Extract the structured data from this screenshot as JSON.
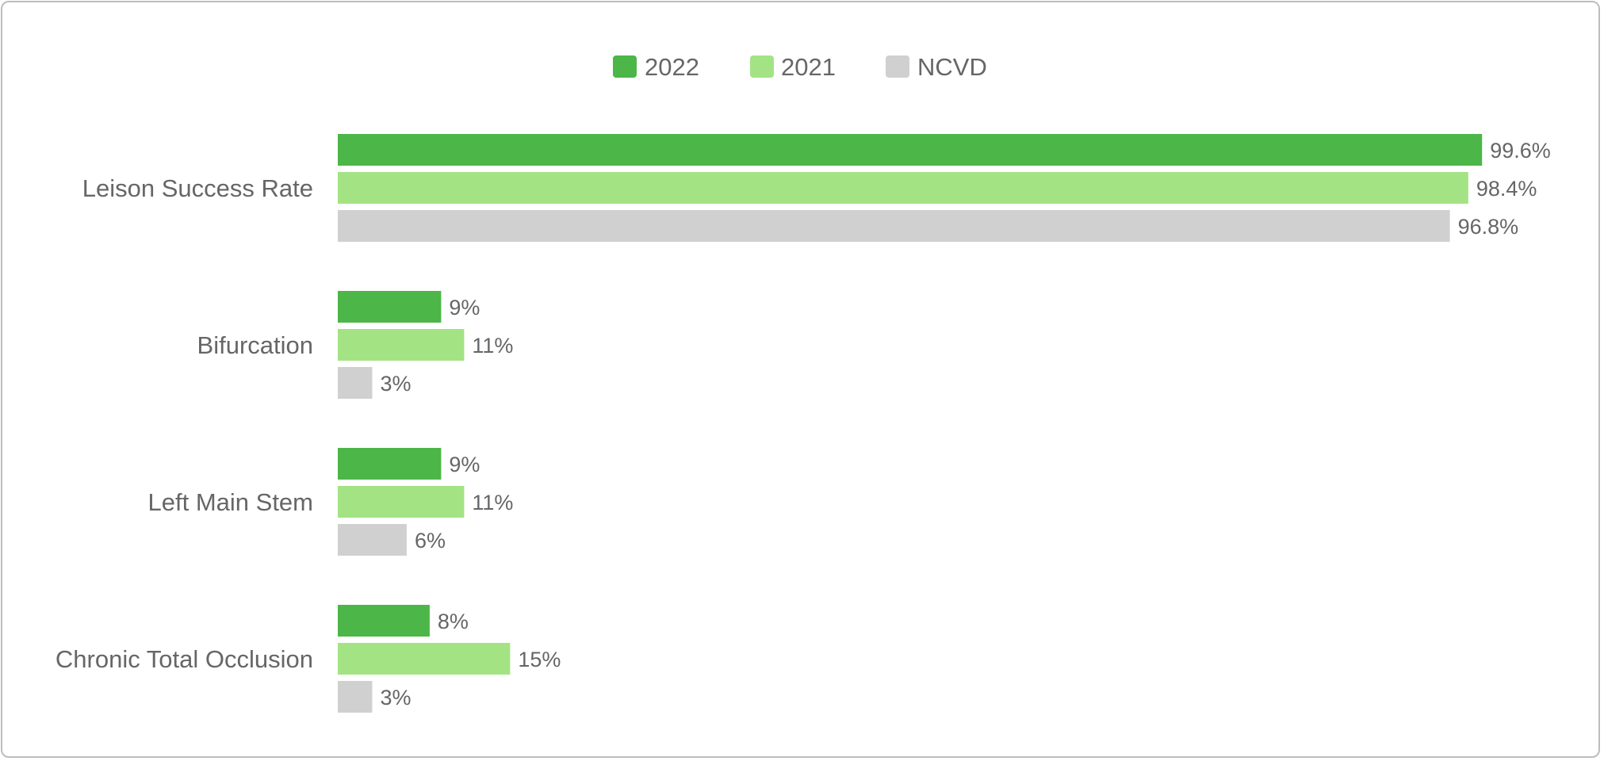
{
  "chart_data": {
    "type": "bar",
    "orientation": "horizontal",
    "categories": [
      "Leison Success Rate",
      "Bifurcation",
      "Left Main Stem",
      "Chronic Total Occlusion"
    ],
    "series": [
      {
        "name": "2022",
        "color": "#4cb648",
        "values": [
          99.6,
          9,
          9,
          8
        ],
        "labels": [
          "99.6%",
          "9%",
          "9%",
          "8%"
        ]
      },
      {
        "name": "2021",
        "color": "#a3e384",
        "values": [
          98.4,
          11,
          11,
          15
        ],
        "labels": [
          "98.4%",
          "11%",
          "11%",
          "15%"
        ]
      },
      {
        "name": "NCVD",
        "color": "#d0d0d0",
        "values": [
          96.8,
          3,
          6,
          3
        ],
        "labels": [
          "96.8%",
          "3%",
          "6%",
          "3%"
        ]
      }
    ],
    "xlim": [
      0,
      100
    ],
    "legend_position": "top-center",
    "grid": false
  }
}
